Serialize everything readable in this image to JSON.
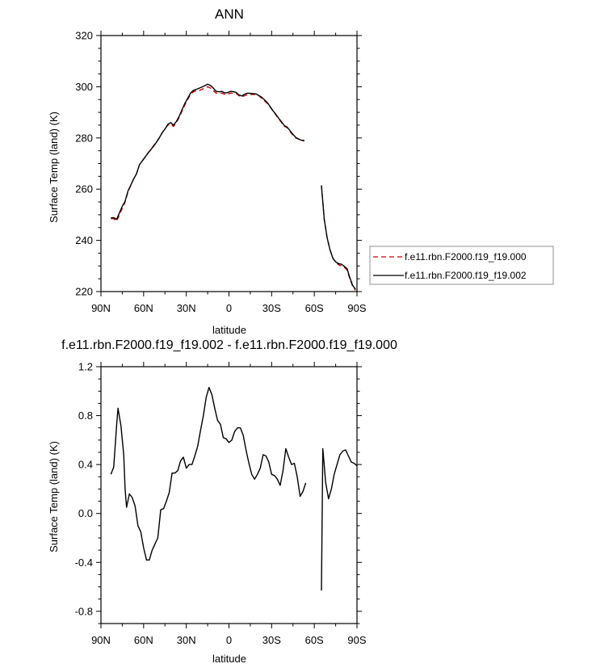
{
  "chart_data": [
    {
      "type": "line",
      "title": "ANN",
      "xlabel": "latitude",
      "ylabel": "Surface Temp (land) (K)",
      "xlim": [
        90,
        -90
      ],
      "ylim": [
        220,
        320
      ],
      "x_ticks": [
        90,
        60,
        30,
        0,
        -30,
        -60,
        -90
      ],
      "x_tick_labels": [
        "90N",
        "60N",
        "30N",
        "0",
        "30S",
        "60S",
        "90S"
      ],
      "y_ticks": [
        220,
        240,
        260,
        280,
        300,
        320
      ],
      "y_tick_labels": [
        "220",
        "240",
        "260",
        "280",
        "300",
        "320"
      ],
      "legend_position": "right",
      "series": [
        {
          "name": "f.e11.rbn.F2000.f19_f19.000",
          "color": "#cc0000",
          "dash": "dashed",
          "points": [
            [
              83,
              248.5
            ],
            [
              81,
              248.5
            ],
            [
              79,
              247.5
            ],
            [
              77,
              250
            ],
            [
              75,
              252.5
            ],
            [
              73,
              255
            ],
            [
              71,
              259
            ],
            [
              69,
              261.5
            ],
            [
              67,
              264
            ],
            [
              65,
              266
            ],
            [
              63,
              269.5
            ],
            [
              61,
              271
            ],
            [
              59,
              272.5
            ],
            [
              57,
              274
            ],
            [
              55,
              275.5
            ],
            [
              53,
              277
            ],
            [
              51,
              278.5
            ],
            [
              49,
              280
            ],
            [
              47,
              282
            ],
            [
              45,
              283.5
            ],
            [
              43,
              285
            ],
            [
              41,
              285.5
            ],
            [
              39,
              284.5
            ],
            [
              37,
              286
            ],
            [
              35,
              288
            ],
            [
              33,
              290.5
            ],
            [
              31,
              293
            ],
            [
              29,
              295
            ],
            [
              27,
              297
            ],
            [
              25,
              298
            ],
            [
              23,
              298.5
            ],
            [
              21,
              298.5
            ],
            [
              19,
              299
            ],
            [
              17,
              299.5
            ],
            [
              15,
              300
            ],
            [
              13,
              299.5
            ],
            [
              11,
              298.5
            ],
            [
              9,
              297.5
            ],
            [
              7,
              297.5
            ],
            [
              5,
              297.5
            ],
            [
              3,
              297
            ],
            [
              1,
              297
            ],
            [
              -1,
              297.5
            ],
            [
              -3,
              297.5
            ],
            [
              -5,
              297.5
            ],
            [
              -7,
              296.5
            ],
            [
              -9,
              296
            ],
            [
              -11,
              296.5
            ],
            [
              -13,
              297
            ],
            [
              -15,
              297
            ],
            [
              -17,
              297
            ],
            [
              -19,
              297
            ],
            [
              -21,
              296.5
            ],
            [
              -23,
              295.5
            ],
            [
              -25,
              294.5
            ],
            [
              -27,
              293.5
            ],
            [
              -29,
              292
            ],
            [
              -31,
              290.5
            ],
            [
              -33,
              289
            ],
            [
              -35,
              287.5
            ],
            [
              -37,
              286
            ],
            [
              -39,
              284.5
            ],
            [
              -41,
              284
            ],
            [
              -43,
              282.5
            ],
            [
              -45,
              281
            ],
            [
              -47,
              280
            ],
            [
              -49,
              279.5
            ],
            [
              -51,
              279
            ],
            [
              -53,
              278.8
            ],
            [
              null,
              null
            ],
            [
              -65,
              261.5
            ],
            [
              -67,
              248
            ],
            [
              -69,
              241
            ],
            [
              -71,
              236.5
            ],
            [
              -73,
              233
            ],
            [
              -75,
              231.5
            ],
            [
              -77,
              230.5
            ],
            [
              -79,
              230
            ],
            [
              -81,
              229.5
            ],
            [
              -83,
              228.5
            ],
            [
              -85,
              225
            ],
            [
              -87,
              222
            ],
            [
              -89,
              220.5
            ]
          ]
        },
        {
          "name": "f.e11.rbn.F2000.f19_f19.002",
          "color": "#000000",
          "dash": "solid",
          "points": [
            [
              83,
              248.8
            ],
            [
              81,
              248.9
            ],
            [
              79,
              248.2
            ],
            [
              77,
              250.8
            ],
            [
              75,
              253.3
            ],
            [
              73,
              255.3
            ],
            [
              71,
              259.3
            ],
            [
              69,
              261.6
            ],
            [
              67,
              264
            ],
            [
              65,
              266
            ],
            [
              63,
              269.5
            ],
            [
              61,
              271
            ],
            [
              59,
              272.5
            ],
            [
              57,
              274
            ],
            [
              55,
              275.4
            ],
            [
              53,
              276.8
            ],
            [
              51,
              278.3
            ],
            [
              49,
              280
            ],
            [
              47,
              282
            ],
            [
              45,
              283.5
            ],
            [
              43,
              285.3
            ],
            [
              41,
              286
            ],
            [
              39,
              285
            ],
            [
              37,
              286.4
            ],
            [
              35,
              288.5
            ],
            [
              33,
              291
            ],
            [
              31,
              293.5
            ],
            [
              29,
              295.5
            ],
            [
              27,
              297.5
            ],
            [
              25,
              298.6
            ],
            [
              23,
              299
            ],
            [
              21,
              299.4
            ],
            [
              19,
              299.9
            ],
            [
              17,
              300.4
            ],
            [
              15,
              301
            ],
            [
              13,
              300.5
            ],
            [
              11,
              299.5
            ],
            [
              9,
              298.2
            ],
            [
              7,
              298
            ],
            [
              5,
              298.2
            ],
            [
              3,
              297.6
            ],
            [
              1,
              297.7
            ],
            [
              -1,
              298.2
            ],
            [
              -3,
              298.1
            ],
            [
              -5,
              297.8
            ],
            [
              -7,
              296.8
            ],
            [
              -9,
              296.4
            ],
            [
              -11,
              297.1
            ],
            [
              -13,
              297.5
            ],
            [
              -15,
              297.4
            ],
            [
              -17,
              297.3
            ],
            [
              -19,
              297.2
            ],
            [
              -21,
              296.6
            ],
            [
              -23,
              295.9
            ],
            [
              -25,
              294.9
            ],
            [
              -27,
              293.8
            ],
            [
              -29,
              292.2
            ],
            [
              -31,
              290.6
            ],
            [
              -33,
              289.2
            ],
            [
              -35,
              287.7
            ],
            [
              -37,
              286.2
            ],
            [
              -39,
              284.8
            ],
            [
              -41,
              284.2
            ],
            [
              -43,
              282.8
            ],
            [
              -45,
              281.4
            ],
            [
              -47,
              280.2
            ],
            [
              -49,
              279.6
            ],
            [
              -51,
              279.1
            ],
            [
              -53,
              279.1
            ],
            [
              null,
              null
            ],
            [
              -65,
              261.4
            ],
            [
              -67,
              248.3
            ],
            [
              -69,
              241.1
            ],
            [
              -71,
              236.4
            ],
            [
              -73,
              233.1
            ],
            [
              -75,
              231.6
            ],
            [
              -77,
              230.9
            ],
            [
              -79,
              230.7
            ],
            [
              -81,
              229.9
            ],
            [
              -83,
              229
            ],
            [
              -85,
              225.4
            ],
            [
              -87,
              222.4
            ],
            [
              -89,
              220.9
            ]
          ]
        }
      ]
    },
    {
      "type": "line",
      "title": "f.e11.rbn.F2000.f19_f19.002 - f.e11.rbn.F2000.f19_f19.000",
      "xlabel": "latitude",
      "ylabel": "Surface Temp (land) (K)",
      "xlim": [
        90,
        -90
      ],
      "ylim": [
        -0.9,
        1.2
      ],
      "x_ticks": [
        90,
        60,
        30,
        0,
        -30,
        -60,
        -90
      ],
      "x_tick_labels": [
        "90N",
        "60N",
        "30N",
        "0",
        "30S",
        "60S",
        "90S"
      ],
      "y_ticks": [
        -0.8,
        -0.4,
        0.0,
        0.4,
        0.8,
        1.2
      ],
      "y_tick_labels": [
        "-0.8",
        "-0.4",
        "0.0",
        "0.4",
        "0.8",
        "1.2"
      ],
      "series": [
        {
          "color": "#000000",
          "dash": "solid",
          "points": [
            [
              83,
              0.32
            ],
            [
              81,
              0.38
            ],
            [
              79,
              0.72
            ],
            [
              78,
              0.86
            ],
            [
              76,
              0.72
            ],
            [
              74,
              0.48
            ],
            [
              73,
              0.2
            ],
            [
              72,
              0.05
            ],
            [
              70,
              0.16
            ],
            [
              68,
              0.13
            ],
            [
              66,
              0.06
            ],
            [
              64,
              -0.1
            ],
            [
              62,
              -0.15
            ],
            [
              60,
              -0.28
            ],
            [
              58,
              -0.38
            ],
            [
              56,
              -0.38
            ],
            [
              54,
              -0.3
            ],
            [
              52,
              -0.25
            ],
            [
              50,
              -0.2
            ],
            [
              48,
              0.03
            ],
            [
              46,
              0.04
            ],
            [
              44,
              0.1
            ],
            [
              42,
              0.17
            ],
            [
              40,
              0.33
            ],
            [
              38,
              0.33
            ],
            [
              36,
              0.35
            ],
            [
              34,
              0.43
            ],
            [
              32,
              0.46
            ],
            [
              30,
              0.37
            ],
            [
              28,
              0.4
            ],
            [
              26,
              0.4
            ],
            [
              24,
              0.47
            ],
            [
              22,
              0.55
            ],
            [
              20,
              0.68
            ],
            [
              18,
              0.8
            ],
            [
              16,
              0.95
            ],
            [
              14,
              1.03
            ],
            [
              12,
              0.97
            ],
            [
              10,
              0.86
            ],
            [
              8,
              0.76
            ],
            [
              6,
              0.73
            ],
            [
              4,
              0.62
            ],
            [
              2,
              0.61
            ],
            [
              0,
              0.58
            ],
            [
              -2,
              0.6
            ],
            [
              -4,
              0.67
            ],
            [
              -6,
              0.7
            ],
            [
              -8,
              0.7
            ],
            [
              -10,
              0.64
            ],
            [
              -12,
              0.52
            ],
            [
              -14,
              0.41
            ],
            [
              -16,
              0.32
            ],
            [
              -18,
              0.28
            ],
            [
              -20,
              0.32
            ],
            [
              -22,
              0.37
            ],
            [
              -24,
              0.48
            ],
            [
              -26,
              0.47
            ],
            [
              -28,
              0.42
            ],
            [
              -30,
              0.32
            ],
            [
              -32,
              0.31
            ],
            [
              -34,
              0.28
            ],
            [
              -36,
              0.23
            ],
            [
              -38,
              0.35
            ],
            [
              -40,
              0.53
            ],
            [
              -42,
              0.46
            ],
            [
              -44,
              0.4
            ],
            [
              -46,
              0.41
            ],
            [
              -48,
              0.3
            ],
            [
              -50,
              0.14
            ],
            [
              -52,
              0.18
            ],
            [
              -54,
              0.25
            ],
            [
              null,
              null
            ],
            [
              -65,
              -0.63
            ],
            [
              -66,
              0.53
            ],
            [
              -68,
              0.25
            ],
            [
              -70,
              0.12
            ],
            [
              -72,
              0.2
            ],
            [
              -74,
              0.32
            ],
            [
              -76,
              0.4
            ],
            [
              -78,
              0.48
            ],
            [
              -80,
              0.51
            ],
            [
              -82,
              0.52
            ],
            [
              -84,
              0.47
            ],
            [
              -86,
              0.42
            ],
            [
              -88,
              0.41
            ],
            [
              -90,
              0.39
            ]
          ]
        }
      ]
    }
  ]
}
